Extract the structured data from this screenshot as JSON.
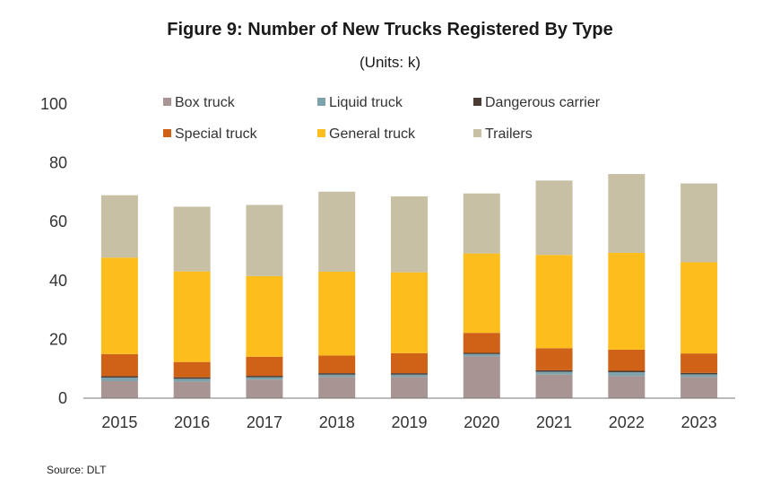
{
  "title": "Figure 9:  Number of  New Trucks Registered By Type",
  "subtitle": "(Units: k)",
  "source": "Source:  DLT",
  "chart_data": {
    "type": "bar",
    "stacked": true,
    "categories": [
      "2015",
      "2016",
      "2017",
      "2018",
      "2019",
      "2020",
      "2021",
      "2022",
      "2023"
    ],
    "ylim": [
      0,
      100
    ],
    "yticks": [
      0,
      20,
      40,
      60,
      80,
      100
    ],
    "grid": false,
    "legend_position": "top",
    "series": [
      {
        "name": "Box truck",
        "color": "#a89492",
        "values": [
          5.8,
          5.6,
          6.3,
          7.2,
          7.2,
          14.2,
          8.0,
          7.5,
          7.2
        ]
      },
      {
        "name": "Liquid  truck",
        "color": "#7fa3ad",
        "values": [
          1.2,
          1.0,
          0.8,
          0.8,
          0.8,
          0.8,
          1.0,
          1.3,
          0.9
        ]
      },
      {
        "name": "Dangerous carrier",
        "color": "#4a3b35",
        "values": [
          0.5,
          0.5,
          0.5,
          0.5,
          0.5,
          0.4,
          0.5,
          0.5,
          0.5
        ]
      },
      {
        "name": "Special truck",
        "color": "#cf6217",
        "values": [
          7.5,
          5.2,
          6.5,
          6.0,
          6.8,
          6.8,
          7.5,
          7.2,
          6.6
        ]
      },
      {
        "name": "General truck",
        "color": "#fdbd1d",
        "values": [
          32.8,
          30.8,
          27.4,
          28.5,
          27.5,
          27.0,
          31.7,
          32.9,
          31.0
        ]
      },
      {
        "name": "Trailers",
        "color": "#c8c0a4",
        "values": [
          21.2,
          22.0,
          24.2,
          27.2,
          25.8,
          20.4,
          25.3,
          26.8,
          26.8
        ]
      }
    ]
  }
}
